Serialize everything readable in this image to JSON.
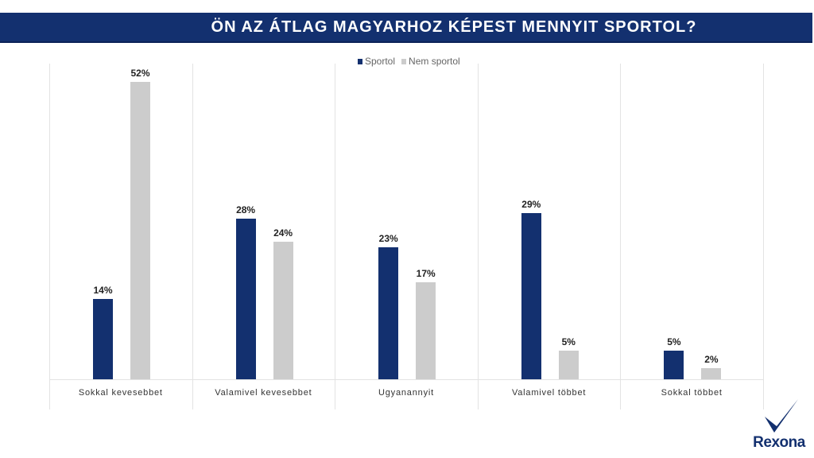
{
  "header": {
    "title": "ÖN AZ ÁTLAG MAGYARHOZ KÉPEST MENNYIT SPORTOL?"
  },
  "legend": [
    {
      "label": "Sportol",
      "color": "#13306f"
    },
    {
      "label": "Nem sportol",
      "color": "#cccccc"
    }
  ],
  "colors": {
    "primary": "#13306f",
    "secondary": "#cccccc",
    "title_bg": "#13306f",
    "grid": "#e3e3e3"
  },
  "brand": {
    "logo_text": "Rexona",
    "logo_icon": "checkmark-icon"
  },
  "chart_data": {
    "type": "bar",
    "title": "ÖN AZ ÁTLAG MAGYARHOZ KÉPEST MENNYIT SPORTOL?",
    "xlabel": "",
    "ylabel": "",
    "ylim": [
      0,
      55
    ],
    "grid": "vertical category separators",
    "legend_position": "top",
    "categories": [
      "Sokkal kevesebbet",
      "Valamivel kevesebbet",
      "Ugyanannyit",
      "Valamivel többet",
      "Sokkal többet"
    ],
    "series": [
      {
        "name": "Sportol",
        "values": [
          14,
          28,
          23,
          29,
          5
        ],
        "labels": [
          "14%",
          "28%",
          "23%",
          "29%",
          "5%"
        ]
      },
      {
        "name": "Nem sportol",
        "values": [
          52,
          24,
          17,
          5,
          2
        ],
        "labels": [
          "52%",
          "24%",
          "17%",
          "5%",
          "2%"
        ]
      }
    ]
  }
}
